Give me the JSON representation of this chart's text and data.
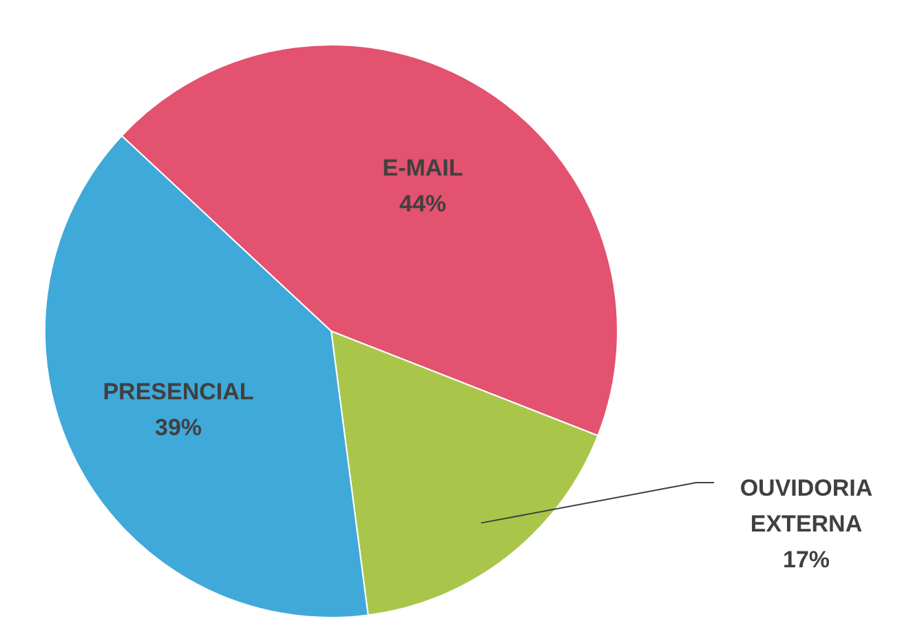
{
  "chart_data": {
    "type": "pie",
    "categories": [
      "E-MAIL",
      "OUVIDORIA EXTERNA",
      "PRESENCIAL"
    ],
    "values": [
      44,
      17,
      39
    ],
    "colors": [
      "#e3526f",
      "#a9c64b",
      "#3fa9d9"
    ],
    "value_labels": [
      "44%",
      "17%",
      "39%"
    ]
  }
}
